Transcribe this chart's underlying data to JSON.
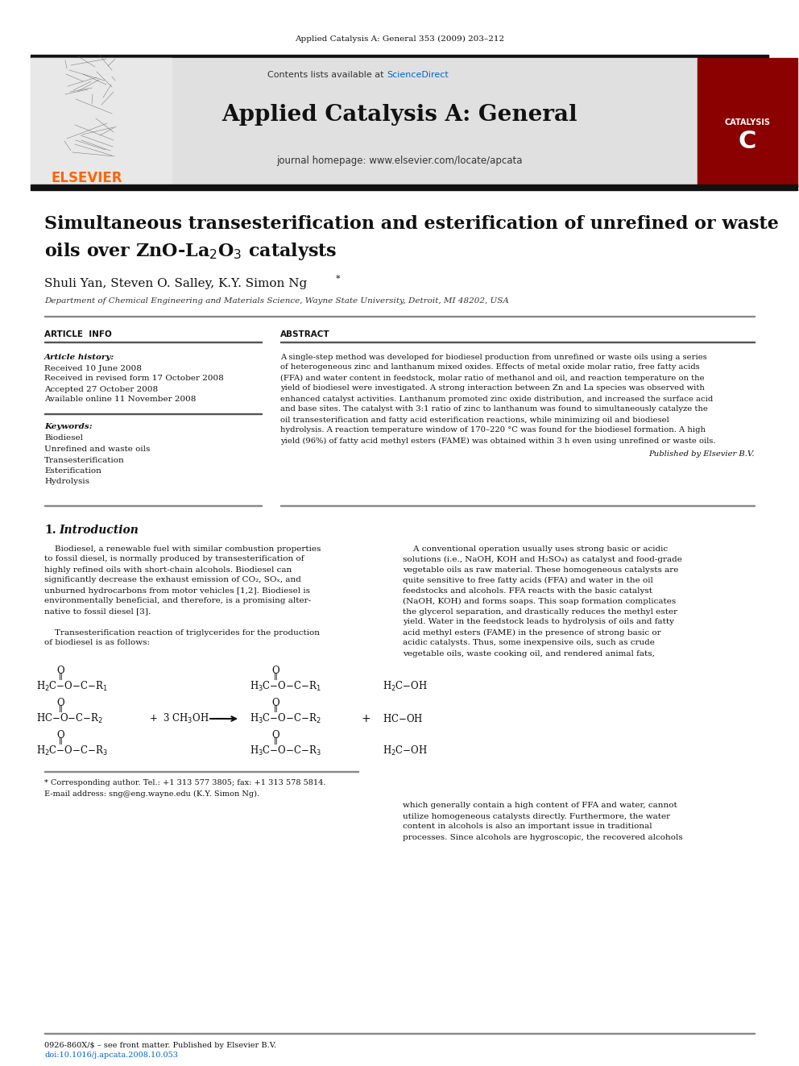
{
  "page_width": 9.92,
  "page_height": 13.23,
  "bg_color": "#ffffff",
  "header_journal_text": "Applied Catalysis A: General 353 (2009) 203–212",
  "elsevier_text": "ELSEVIER",
  "contents_text": "Contents lists available at ",
  "sciencedirect_text": "ScienceDirect",
  "sciencedirect_color": "#0066cc",
  "journal_name": "Applied Catalysis A: General",
  "journal_homepage": "journal homepage: www.elsevier.com/locate/apcata",
  "title_line1": "Simultaneous transesterification and esterification of unrefined or waste",
  "title_line2": "oils over ZnO-La$_2$O$_3$ catalysts",
  "authors_main": "Shuli Yan, Steven O. Salley, K.Y. Simon Ng",
  "affiliation": "Department of Chemical Engineering and Materials Science, Wayne State University, Detroit, MI 48202, USA",
  "article_info_label": "ARTICLE  INFO",
  "abstract_label": "ABSTRACT",
  "article_history_label": "Article history:",
  "received1": "Received 10 June 2008",
  "revised": "Received in revised form 17 October 2008",
  "accepted": "Accepted 27 October 2008",
  "available": "Available online 11 November 2008",
  "keywords_label": "Keywords:",
  "keywords": [
    "Biodiesel",
    "Unrefined and waste oils",
    "Transesterification",
    "Esterification",
    "Hydrolysis"
  ],
  "abstract_lines": [
    "A single-step method was developed for biodiesel production from unrefined or waste oils using a series",
    "of heterogeneous zinc and lanthanum mixed oxides. Effects of metal oxide molar ratio, free fatty acids",
    "(FFA) and water content in feedstock, molar ratio of methanol and oil, and reaction temperature on the",
    "yield of biodiesel were investigated. A strong interaction between Zn and La species was observed with",
    "enhanced catalyst activities. Lanthanum promoted zinc oxide distribution, and increased the surface acid",
    "and base sites. The catalyst with 3:1 ratio of zinc to lanthanum was found to simultaneously catalyze the",
    "oil transesterification and fatty acid esterification reactions, while minimizing oil and biodiesel",
    "hydrolysis. A reaction temperature window of 170–220 °C was found for the biodiesel formation. A high",
    "yield (96%) of fatty acid methyl esters (FAME) was obtained within 3 h even using unrefined or waste oils."
  ],
  "published_by": "Published by Elsevier B.V.",
  "intro_left_lines": [
    "    Biodiesel, a renewable fuel with similar combustion properties",
    "to fossil diesel, is normally produced by transesterification of",
    "highly refined oils with short-chain alcohols. Biodiesel can",
    "significantly decrease the exhaust emission of CO₂, SOₓ, and",
    "unburned hydrocarbons from motor vehicles [1,2]. Biodiesel is",
    "environmentally beneficial, and therefore, is a promising alter-",
    "native to fossil diesel [3].",
    "",
    "    Transesterification reaction of triglycerides for the production",
    "of biodiesel is as follows:"
  ],
  "intro_right_lines": [
    "    A conventional operation usually uses strong basic or acidic",
    "solutions (i.e., NaOH, KOH and H₂SO₄) as catalyst and food-grade",
    "vegetable oils as raw material. These homogeneous catalysts are",
    "quite sensitive to free fatty acids (FFA) and water in the oil",
    "feedstocks and alcohols. FFA reacts with the basic catalyst",
    "(NaOH, KOH) and forms soaps. This soap formation complicates",
    "the glycerol separation, and drastically reduces the methyl ester",
    "yield. Water in the feedstock leads to hydrolysis of oils and fatty",
    "acid methyl esters (FAME) in the presence of strong basic or",
    "acidic catalysts. Thus, some inexpensive oils, such as crude",
    "vegetable oils, waste cooking oil, and rendered animal fats,"
  ],
  "bottom_right_lines": [
    "which generally contain a high content of FFA and water, cannot",
    "utilize homogeneous catalysts directly. Furthermore, the water",
    "content in alcohols is also an important issue in traditional",
    "processes. Since alcohols are hygroscopic, the recovered alcohols"
  ],
  "footnote_star": "* Corresponding author. Tel.: +1 313 577 3805; fax: +1 313 578 5814.",
  "footnote_email": "E-mail address: sng@eng.wayne.edu (K.Y. Simon Ng).",
  "footnote_issn": "0926-860X/$ – see front matter. Published by Elsevier B.V.",
  "footnote_doi": "doi:10.1016/j.apcata.2008.10.053"
}
